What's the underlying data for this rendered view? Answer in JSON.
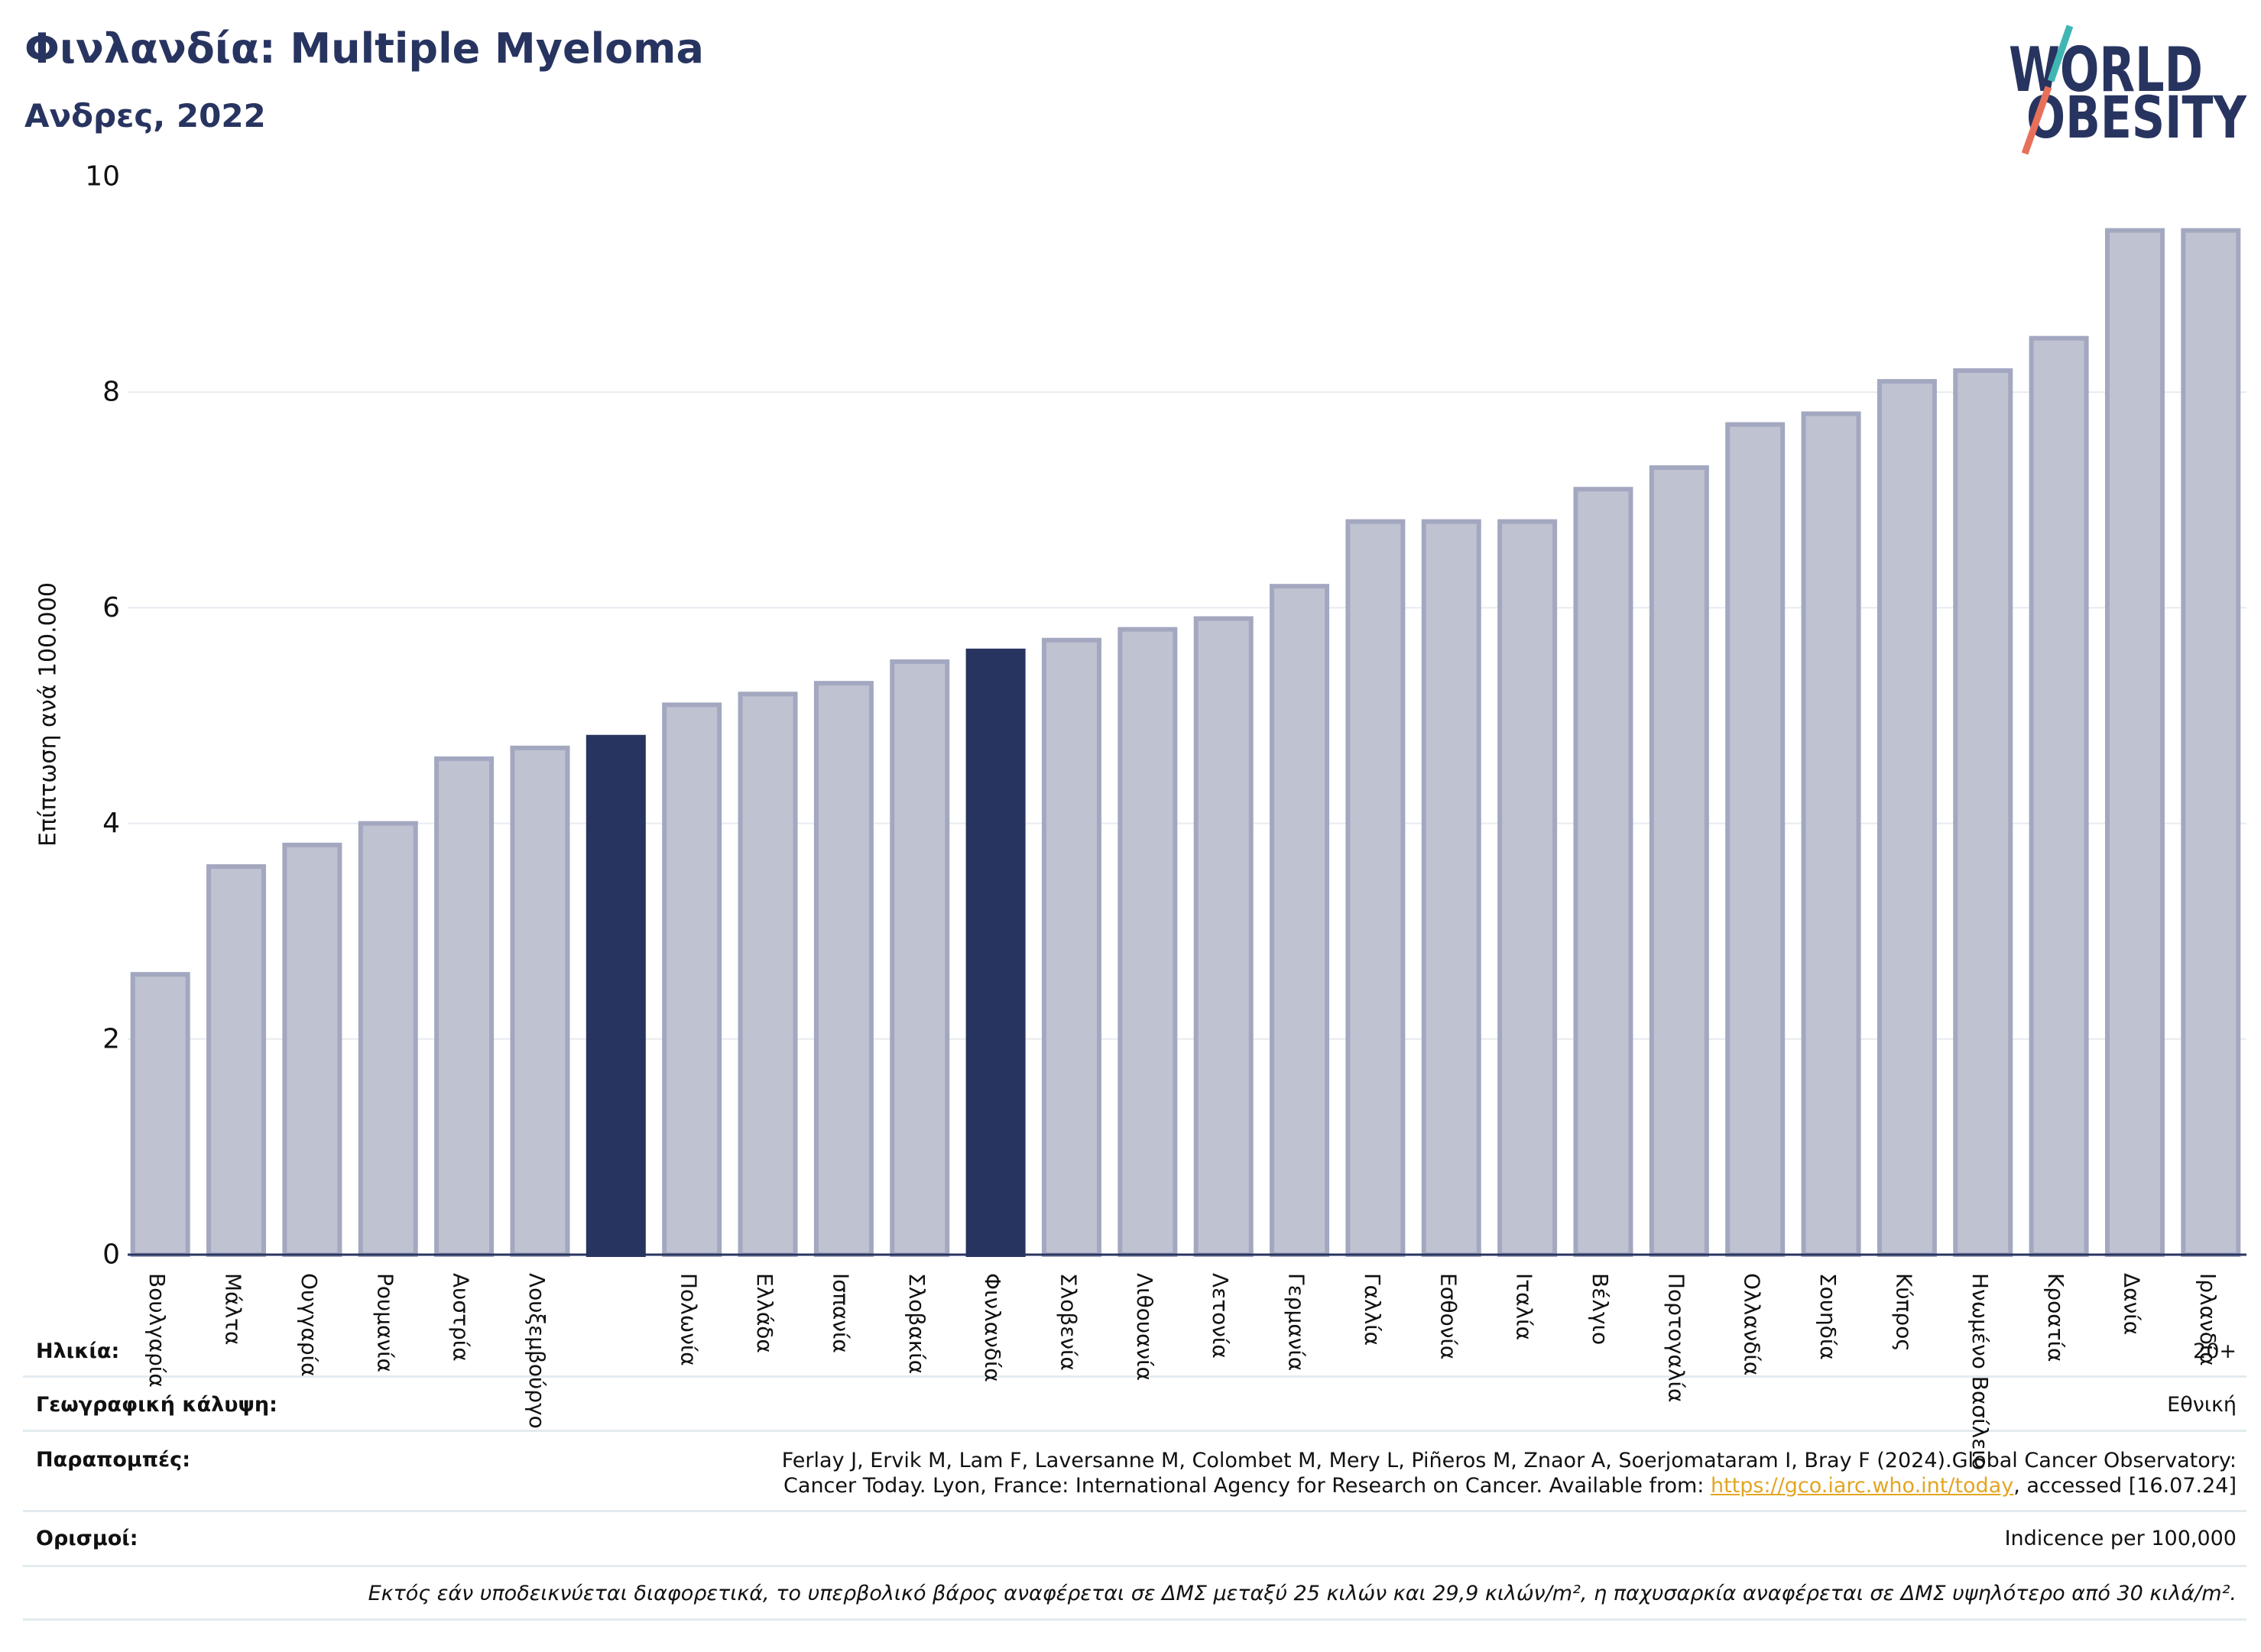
{
  "chart_data": {
    "type": "bar",
    "title": "Φινλανδία: Multiple Myeloma",
    "subtitle": "Ανδρες, 2022",
    "xlabel": "",
    "ylabel": "Επίπτωση ανά 100.000",
    "ylim": [
      0,
      10
    ],
    "yticks": [
      0,
      2,
      4,
      6,
      8,
      10
    ],
    "grid": true,
    "categories": [
      "Βουλγαρία",
      "Μάλτα",
      "Ουγγαρία",
      "Ρουμανία",
      "Αυστρία",
      "Λουξεμβούργο",
      "",
      "Πολωνία",
      "Ελλάδα",
      "Ισπανία",
      "Σλοβακία",
      "Φινλανδία",
      "Σλοβενία",
      "Λιθουανία",
      "Λετονία",
      "Γερμανία",
      "Γαλλία",
      "Εσθονία",
      "Ιταλία",
      "Βέλγιο",
      "Πορτογαλία",
      "Ολλανδία",
      "Σουηδία",
      "Κύπρος",
      "Ηνωμένο Βασίλειο",
      "Κροατία",
      "Δανία",
      "Ιρλανδία"
    ],
    "values": [
      2.6,
      3.6,
      3.8,
      4.0,
      4.6,
      4.7,
      4.8,
      5.1,
      5.2,
      5.3,
      5.5,
      5.6,
      5.7,
      5.8,
      5.9,
      6.2,
      6.8,
      6.8,
      6.8,
      7.1,
      7.3,
      7.7,
      7.8,
      8.1,
      8.2,
      8.5,
      9.5,
      9.5
    ],
    "highlight_index": [
      6,
      11
    ],
    "colors": {
      "bar": "#bfc2d1",
      "bar_edge": "#a3a8c0",
      "highlight": "#283460",
      "axis": "#283460",
      "grid": "#e8ebf0"
    }
  },
  "logo": {
    "line1": "WORLD",
    "line2": "OBESITY",
    "text_color": "#283460",
    "slash_top_color": "#3fb6b4",
    "slash_bottom_color": "#e8705b"
  },
  "table": {
    "age": {
      "label": "Ηλικία:",
      "value": "20+"
    },
    "coverage": {
      "label": "Γεωγραφική κάλυψη:",
      "value": "Εθνική"
    },
    "references": {
      "label": "Παραπομπές:",
      "line1": "Ferlay J, Ervik M, Lam F, Laversanne M, Colombet M, Mery L, Piñeros M, Znaor A, Soerjomataram I, Bray F (2024).Global Cancer Observatory:",
      "line2_text": "Cancer Today. Lyon, France: International Agency for Research on Cancer. Available from: ",
      "link": "https://gco.iarc.who.int/today",
      "line2_suffix": ", accessed [16.07.24]"
    },
    "definitions": {
      "label": "Ορισμοί:",
      "value": "Indicence per 100,000"
    },
    "footnote": "Εκτός εάν υποδεικνύεται διαφορετικά, το υπερβολικό βάρος αναφέρεται σε ΔΜΣ μεταξύ 25 κιλών και 29,9 κιλών/m², η παχυσαρκία αναφέρεται σε ΔΜΣ υψηλότερο από 30 κιλά/m²."
  }
}
